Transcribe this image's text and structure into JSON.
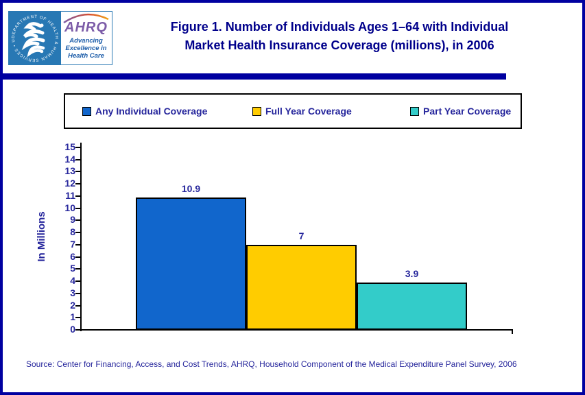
{
  "header": {
    "title_line1": "Figure 1. Number of Individuals Ages 1–64 with Individual",
    "title_line2": "Market Health Insurance Coverage (millions), in 2006",
    "logo": {
      "ahrq": "AHRQ",
      "tagline1": "Advancing",
      "tagline2": "Excellence in",
      "tagline3": "Health Care",
      "seal_text": "DEPARTMENT OF HEALTH & HUMAN SERVICES • USA"
    }
  },
  "chart_data": {
    "type": "bar",
    "title": "Figure 1. Number of Individuals Ages 1–64 with Individual Market Health Insurance Coverage (millions), in 2006",
    "categories": [
      "Any Individual Coverage",
      "Full Year Coverage",
      "Part Year Coverage"
    ],
    "values": [
      10.9,
      7,
      3.9
    ],
    "value_labels": [
      "10.9",
      "7",
      "3.9"
    ],
    "colors": [
      "#1166CC",
      "#FFCC00",
      "#33CCC9"
    ],
    "xlabel": "",
    "ylabel": "In Millions",
    "ylim": [
      0,
      15
    ],
    "ytick_step": 1,
    "grid": false,
    "legend_position": "top"
  },
  "source": {
    "text": "Source: Center for Financing, Access, and Cost Trends, AHRQ, Household Component of the Medical Expenditure Panel Survey, 2006"
  },
  "colors": {
    "page_border": "#0000A0",
    "title_navy": "#00008B",
    "label_navy": "#26269C",
    "seal_blue": "#2878B4",
    "ahrq_purple": "#7C5CA8"
  }
}
